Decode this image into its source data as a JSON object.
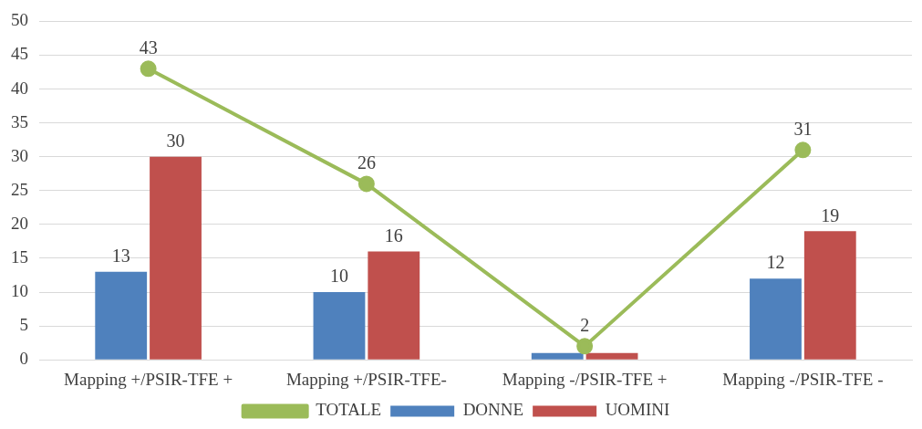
{
  "chart_data": {
    "type": "bar",
    "categories": [
      "Mapping +/PSIR-TFE +",
      "Mapping +/PSIR-TFE-",
      "Mapping -/PSIR-TFE +",
      "Mapping -/PSIR-TFE -"
    ],
    "series": [
      {
        "name": "DONNE",
        "color": "#4f81bd",
        "values": [
          13,
          10,
          1,
          12
        ],
        "value_labels": [
          "13",
          "10",
          null,
          "12"
        ]
      },
      {
        "name": "UOMINI",
        "color": "#c0504d",
        "values": [
          30,
          16,
          1,
          19
        ],
        "value_labels": [
          "30",
          "16",
          null,
          "19"
        ]
      },
      {
        "name": "TOTALE",
        "type": "line",
        "color": "#9bbb59",
        "marker": "circle",
        "values": [
          43,
          26,
          2,
          31
        ],
        "value_labels": [
          "43",
          "26",
          "2",
          "31"
        ]
      }
    ],
    "ylim": [
      0,
      50
    ],
    "yticks": [
      0,
      5,
      10,
      15,
      20,
      25,
      30,
      35,
      40,
      45,
      50
    ],
    "grid": "y",
    "legend": "bottom"
  }
}
